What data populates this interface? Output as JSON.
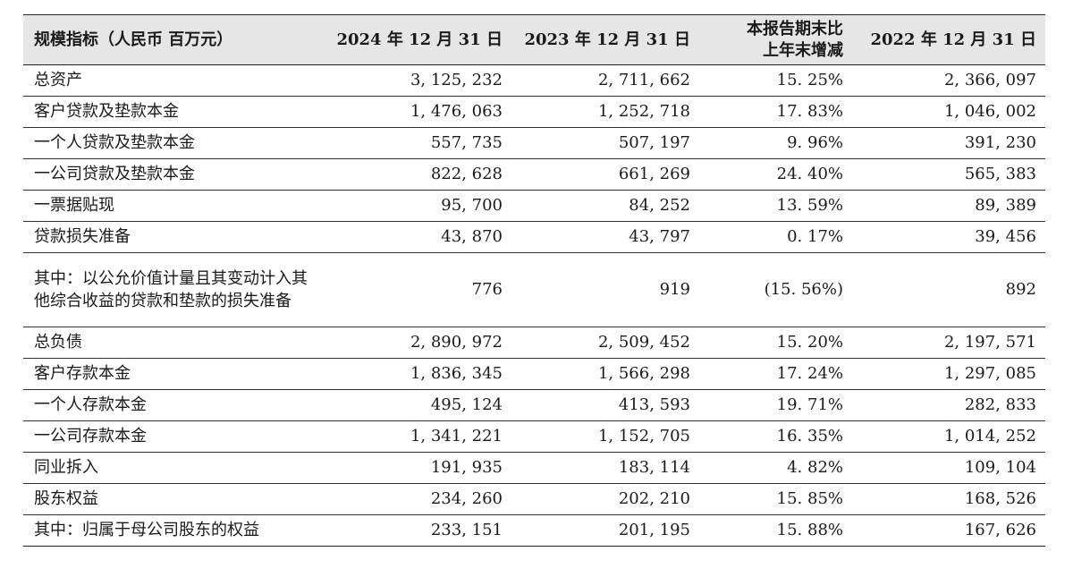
{
  "table": {
    "headers": {
      "metric": "规模指标（人民币 百万元）",
      "col2024": "2024 年 12 月 31 日",
      "col2023": "2023 年 12 月 31 日",
      "change_line1": "本报告期末比",
      "change_line2": "上年末增减",
      "col2022": "2022 年 12 月 31 日"
    },
    "rows": [
      {
        "label": "总资产",
        "v2024": "3, 125, 232",
        "v2023": "2, 711, 662",
        "change": "15. 25%",
        "v2022": "2, 366, 097"
      },
      {
        "label": "客户贷款及垫款本金",
        "v2024": "1, 476, 063",
        "v2023": "1, 252, 718",
        "change": "17. 83%",
        "v2022": "1, 046, 002"
      },
      {
        "label": "一个人贷款及垫款本金",
        "v2024": "557, 735",
        "v2023": "507, 197",
        "change": "9. 96%",
        "v2022": "391, 230"
      },
      {
        "label": "一公司贷款及垫款本金",
        "v2024": "822, 628",
        "v2023": "661, 269",
        "change": "24. 40%",
        "v2022": "565, 383"
      },
      {
        "label": "一票据贴现",
        "v2024": "95, 700",
        "v2023": "84, 252",
        "change": "13. 59%",
        "v2022": "89, 389"
      },
      {
        "label": "贷款损失准备",
        "v2024": "43, 870",
        "v2023": "43, 797",
        "change": "0. 17%",
        "v2022": "39, 456"
      },
      {
        "label": "其中：以公允价值计量且其变动计入其他综合收益的贷款和垫款的损失准备",
        "v2024": "776",
        "v2023": "919",
        "change": "(15. 56%)",
        "v2022": "892"
      },
      {
        "label": "总负债",
        "v2024": "2, 890, 972",
        "v2023": "2, 509, 452",
        "change": "15. 20%",
        "v2022": "2, 197, 571"
      },
      {
        "label": "客户存款本金",
        "v2024": "1, 836, 345",
        "v2023": "1, 566, 298",
        "change": "17. 24%",
        "v2022": "1, 297, 085"
      },
      {
        "label": "一个人存款本金",
        "v2024": "495, 124",
        "v2023": "413, 593",
        "change": "19. 71%",
        "v2022": "282, 833"
      },
      {
        "label": "一公司存款本金",
        "v2024": "1, 341, 221",
        "v2023": "1, 152, 705",
        "change": "16. 35%",
        "v2022": "1, 014, 252"
      },
      {
        "label": "同业拆入",
        "v2024": "191, 935",
        "v2023": "183, 114",
        "change": "4. 82%",
        "v2022": "109, 104"
      },
      {
        "label": "股东权益",
        "v2024": "234, 260",
        "v2023": "202, 210",
        "change": "15. 85%",
        "v2022": "168, 526"
      },
      {
        "label": "其中：归属于母公司股东的权益",
        "v2024": "233, 151",
        "v2023": "201, 195",
        "change": "15. 88%",
        "v2022": "167, 626"
      }
    ]
  }
}
